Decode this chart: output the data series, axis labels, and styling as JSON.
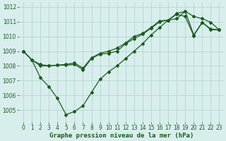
{
  "xlabel": "Graphe pression niveau de la mer (hPa)",
  "bg_color": "#d8eeed",
  "grid_color": "#b5d4d0",
  "line_color": "#1a5c1a",
  "marker": "D",
  "markersize": 2.0,
  "linewidth": 0.9,
  "xlim": [
    -0.5,
    23.5
  ],
  "ylim": [
    1004.2,
    1012.3
  ],
  "yticks": [
    1005,
    1006,
    1007,
    1008,
    1009,
    1010,
    1011,
    1012
  ],
  "xticks": [
    0,
    1,
    2,
    3,
    4,
    5,
    6,
    7,
    8,
    9,
    10,
    11,
    12,
    13,
    14,
    15,
    16,
    17,
    18,
    19,
    20,
    21,
    22,
    23
  ],
  "series": [
    [
      1009.0,
      1008.4,
      1007.2,
      1006.6,
      1005.8,
      1004.7,
      1004.9,
      1005.3,
      1006.2,
      1007.1,
      1007.6,
      1008.0,
      1008.5,
      1009.0,
      1009.5,
      1010.1,
      1010.6,
      1011.1,
      1011.2,
      1011.7,
      1011.35,
      1011.2,
      1010.95,
      1010.45
    ],
    [
      1009.0,
      1008.4,
      1008.0,
      1008.0,
      1008.05,
      1008.05,
      1008.1,
      1007.75,
      1008.5,
      1008.8,
      1008.85,
      1009.0,
      1009.5,
      1009.85,
      1010.15,
      1010.55,
      1011.0,
      1011.1,
      1011.5,
      1011.35,
      1010.05,
      1010.95,
      1010.45,
      1010.45
    ],
    [
      1009.0,
      1008.4,
      1008.1,
      1008.0,
      1008.05,
      1008.1,
      1008.2,
      1007.85,
      1008.55,
      1008.85,
      1009.0,
      1009.2,
      1009.55,
      1010.0,
      1010.2,
      1010.6,
      1011.05,
      1011.1,
      1011.55,
      1011.7,
      1010.1,
      1010.95,
      1010.5,
      1010.45
    ]
  ],
  "tick_fontsize": 5.5,
  "xlabel_fontsize": 6.5
}
